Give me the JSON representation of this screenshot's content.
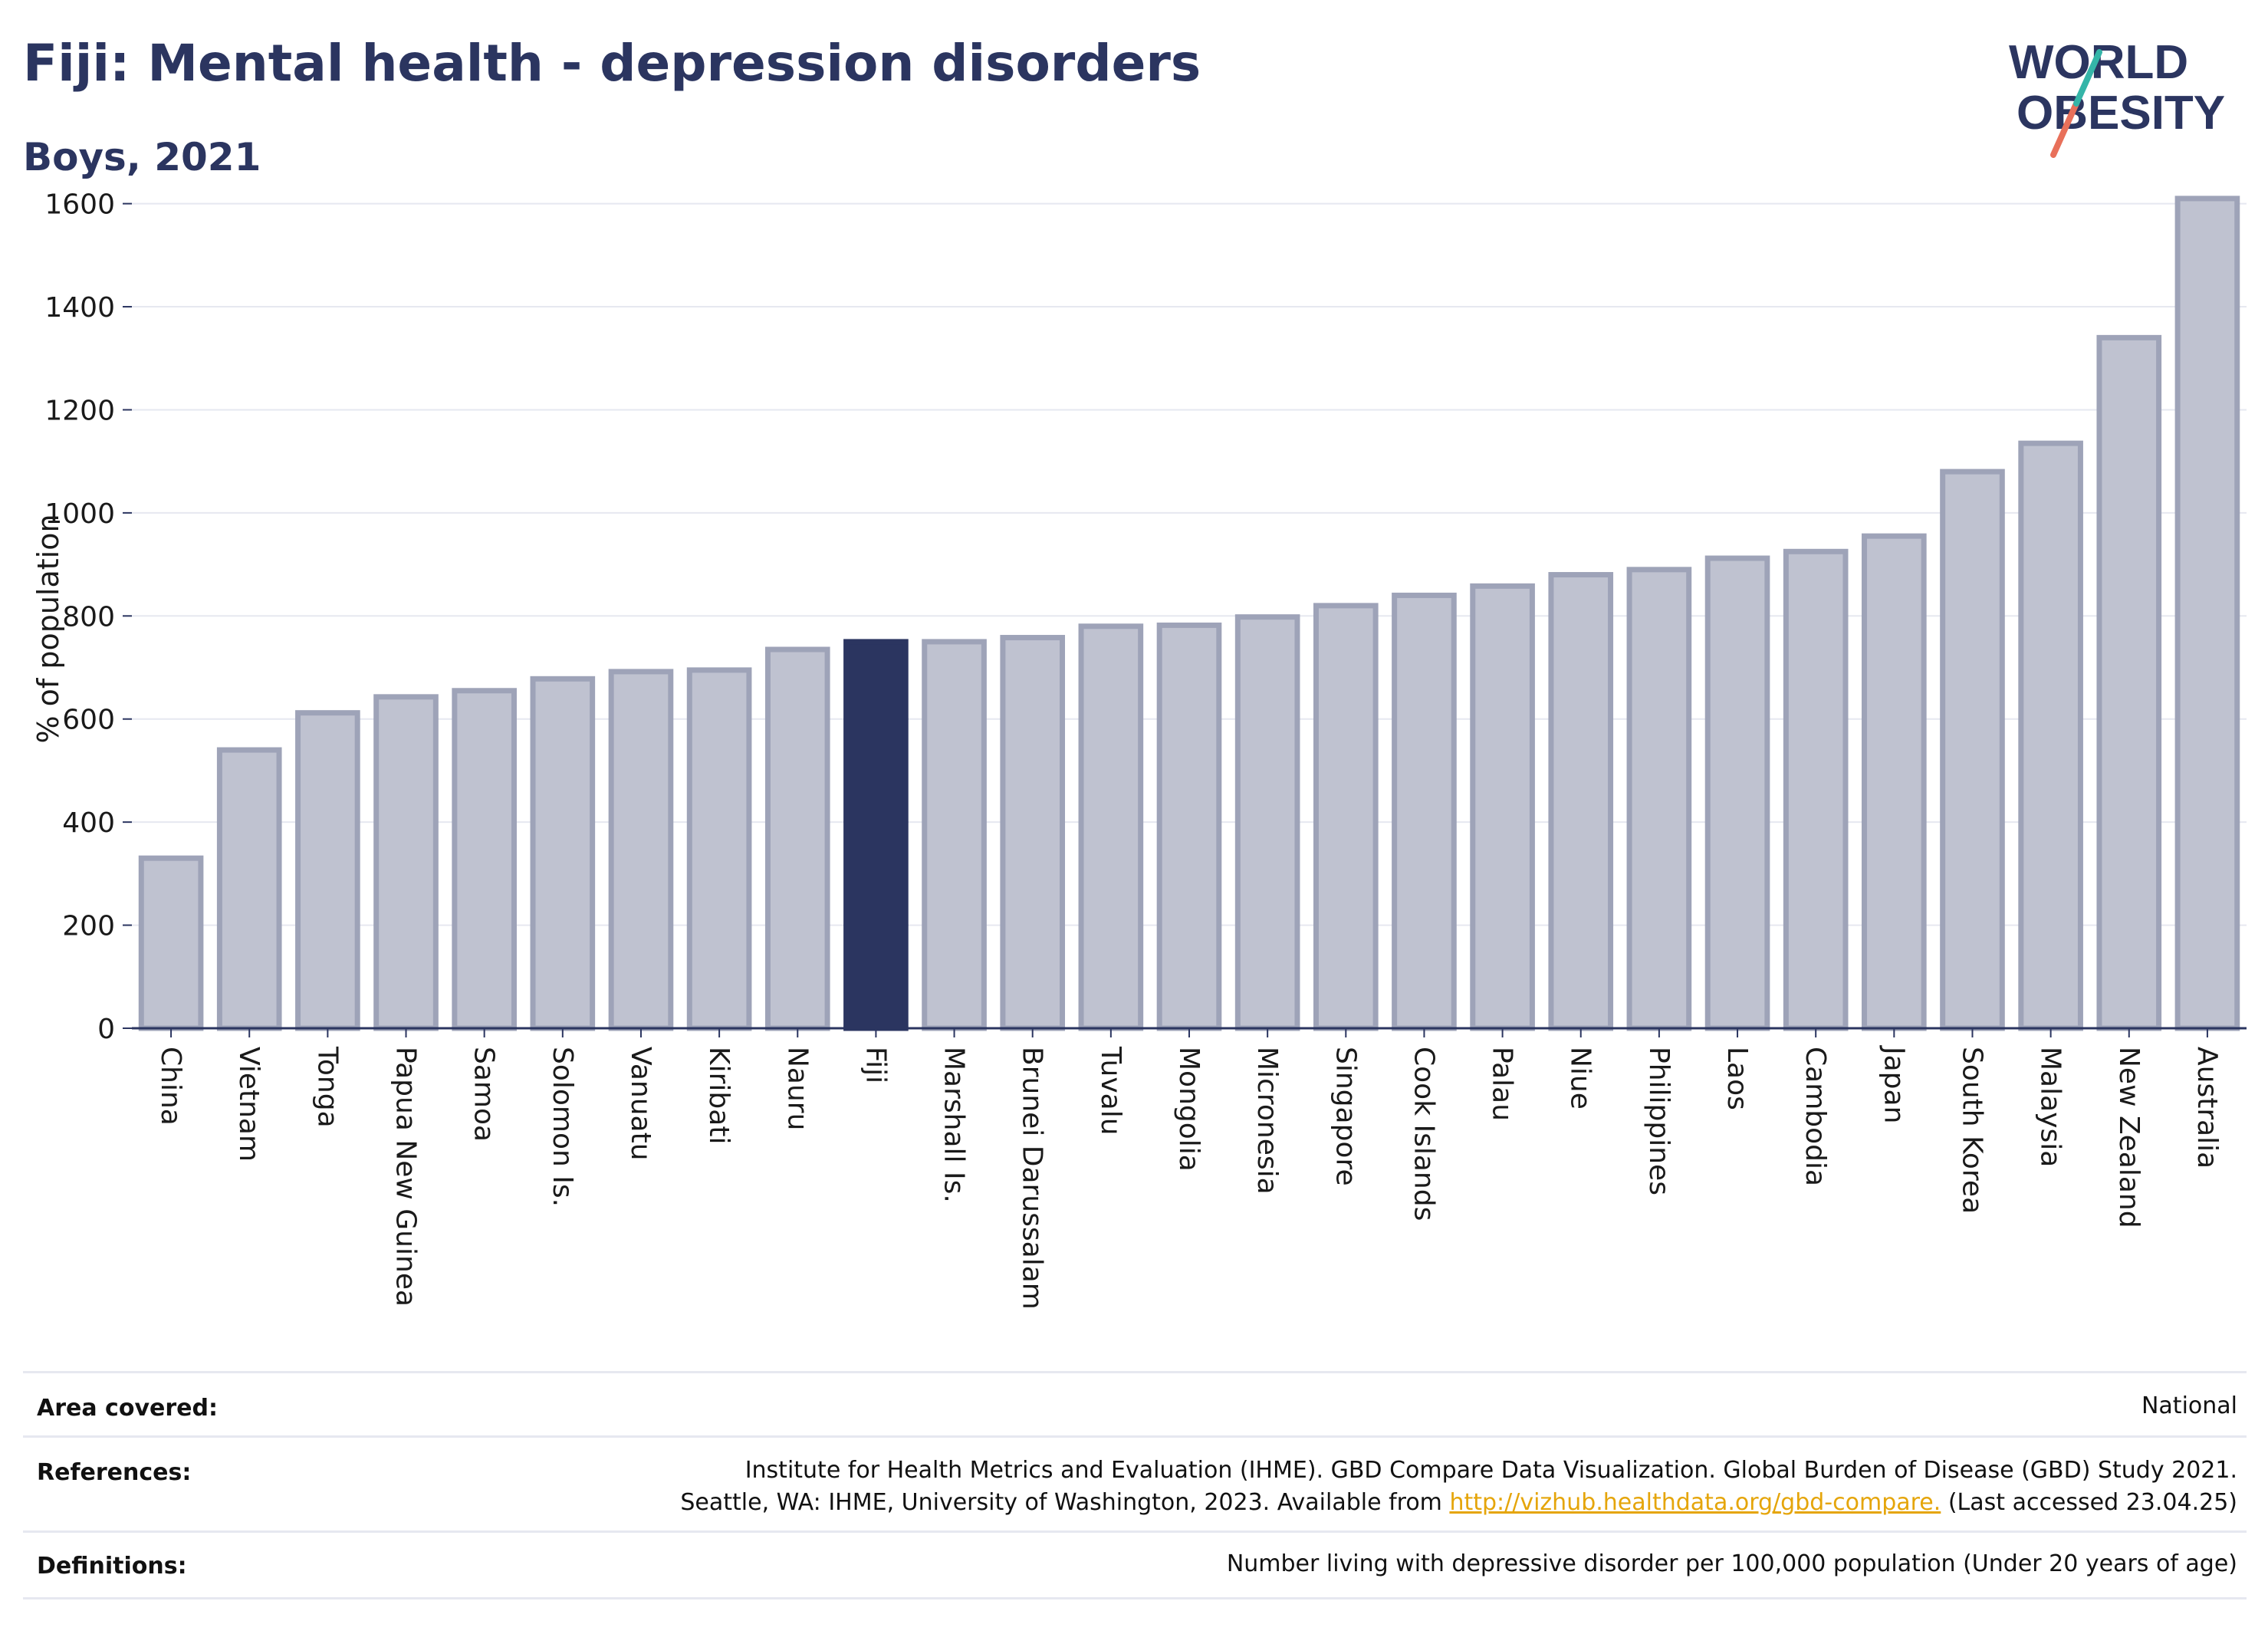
{
  "header": {
    "title": "Fiji: Mental health - depression disorders",
    "subtitle": "Boys, 2021"
  },
  "logo": {
    "line1": "WORLD",
    "line2": "OBESITY"
  },
  "chart_data": {
    "type": "bar",
    "title": "Fiji: Mental health - depression disorders",
    "subtitle": "Boys, 2021",
    "ylabel": "% of population",
    "xlabel": "",
    "ylim": [
      0,
      1650
    ],
    "yticks": [
      0,
      200,
      400,
      600,
      800,
      1000,
      1200,
      1400,
      1600
    ],
    "grid": true,
    "legend": "none",
    "highlight": "Fiji",
    "colors": {
      "bar": "#bfc2d0",
      "bar_edge": "#9ea3b8",
      "highlight": "#2b3560",
      "axis": "#2b3560",
      "grid": "#e6e8f0"
    },
    "categories": [
      "China",
      "Vietnam",
      "Tonga",
      "Papua New Guinea",
      "Samoa",
      "Solomon Is.",
      "Vanuatu",
      "Kiribati",
      "Nauru",
      "Fiji",
      "Marshall Is.",
      "Brunei Darussalam",
      "Tuvalu",
      "Mongolia",
      "Micronesia",
      "Singapore",
      "Cook Islands",
      "Palau",
      "Niue",
      "Philippines",
      "Laos",
      "Cambodia",
      "Japan",
      "South Korea",
      "Malaysia",
      "New Zealand",
      "Australia"
    ],
    "values": [
      330,
      540,
      612,
      643,
      655,
      678,
      692,
      695,
      735,
      750,
      750,
      758,
      780,
      782,
      798,
      820,
      840,
      858,
      880,
      890,
      912,
      925,
      955,
      1080,
      1135,
      1340,
      1610
    ]
  },
  "footer": {
    "area": {
      "label": "Area covered:",
      "value": "National"
    },
    "references": {
      "label": "References:",
      "line1": "Institute for Health Metrics and Evaluation (IHME). GBD Compare Data Visualization. Global Burden of Disease (GBD) Study 2021.",
      "line2_prefix": "Seattle, WA: IHME, University of Washington, 2023. Available from ",
      "link": "http://vizhub.healthdata.org/gbd-compare.",
      "line2_suffix": " (Last accessed 23.04.25)"
    },
    "definitions": {
      "label": "Definitions:",
      "value": "Number living with depressive disorder per 100,000 population (Under 20 years of age)"
    }
  }
}
